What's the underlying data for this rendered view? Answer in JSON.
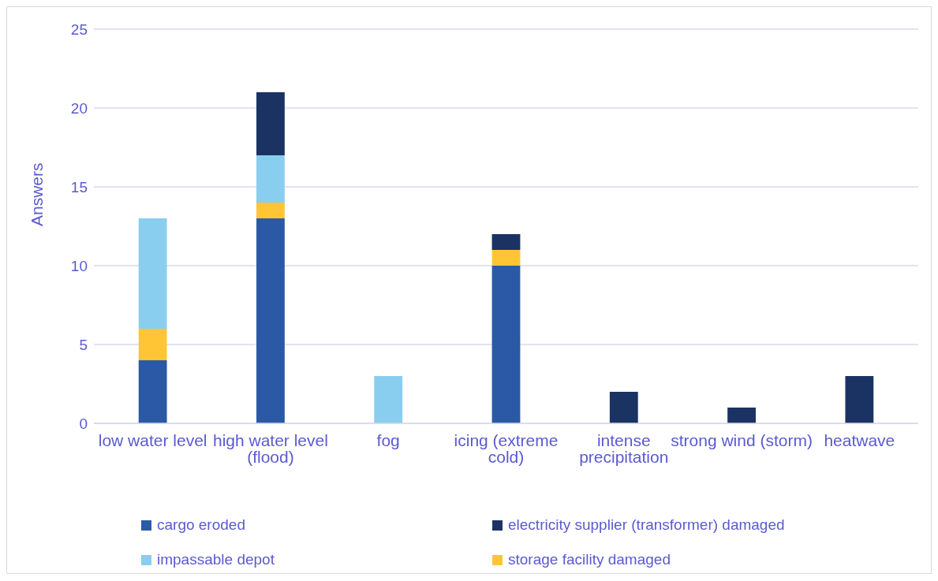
{
  "chart_data": {
    "type": "bar",
    "stacked": true,
    "ylabel": "Answers",
    "categories": [
      "low water level",
      "high water level (flood)",
      "fog",
      "icing (extreme cold)",
      "intense precipitation",
      "strong wind (storm)",
      "heatwave"
    ],
    "series": [
      {
        "name": "cargo eroded",
        "color": "#2b59a6",
        "values": [
          4,
          13,
          0,
          10,
          0,
          0,
          0
        ]
      },
      {
        "name": "storage facility damaged",
        "color": "#ffc535",
        "values": [
          2,
          1,
          0,
          1,
          0,
          0,
          0
        ]
      },
      {
        "name": "impassable depot",
        "color": "#89ceee",
        "values": [
          7,
          3,
          3,
          0,
          0,
          0,
          0
        ]
      },
      {
        "name": "electricity supplier (transformer) damaged",
        "color": "#1b3363",
        "values": [
          0,
          4,
          0,
          1,
          2,
          1,
          3
        ]
      }
    ],
    "ylim": [
      0,
      25
    ],
    "yticks": [
      0,
      5,
      10,
      15,
      20,
      25
    ],
    "grid": "y",
    "legend": "bottom"
  }
}
